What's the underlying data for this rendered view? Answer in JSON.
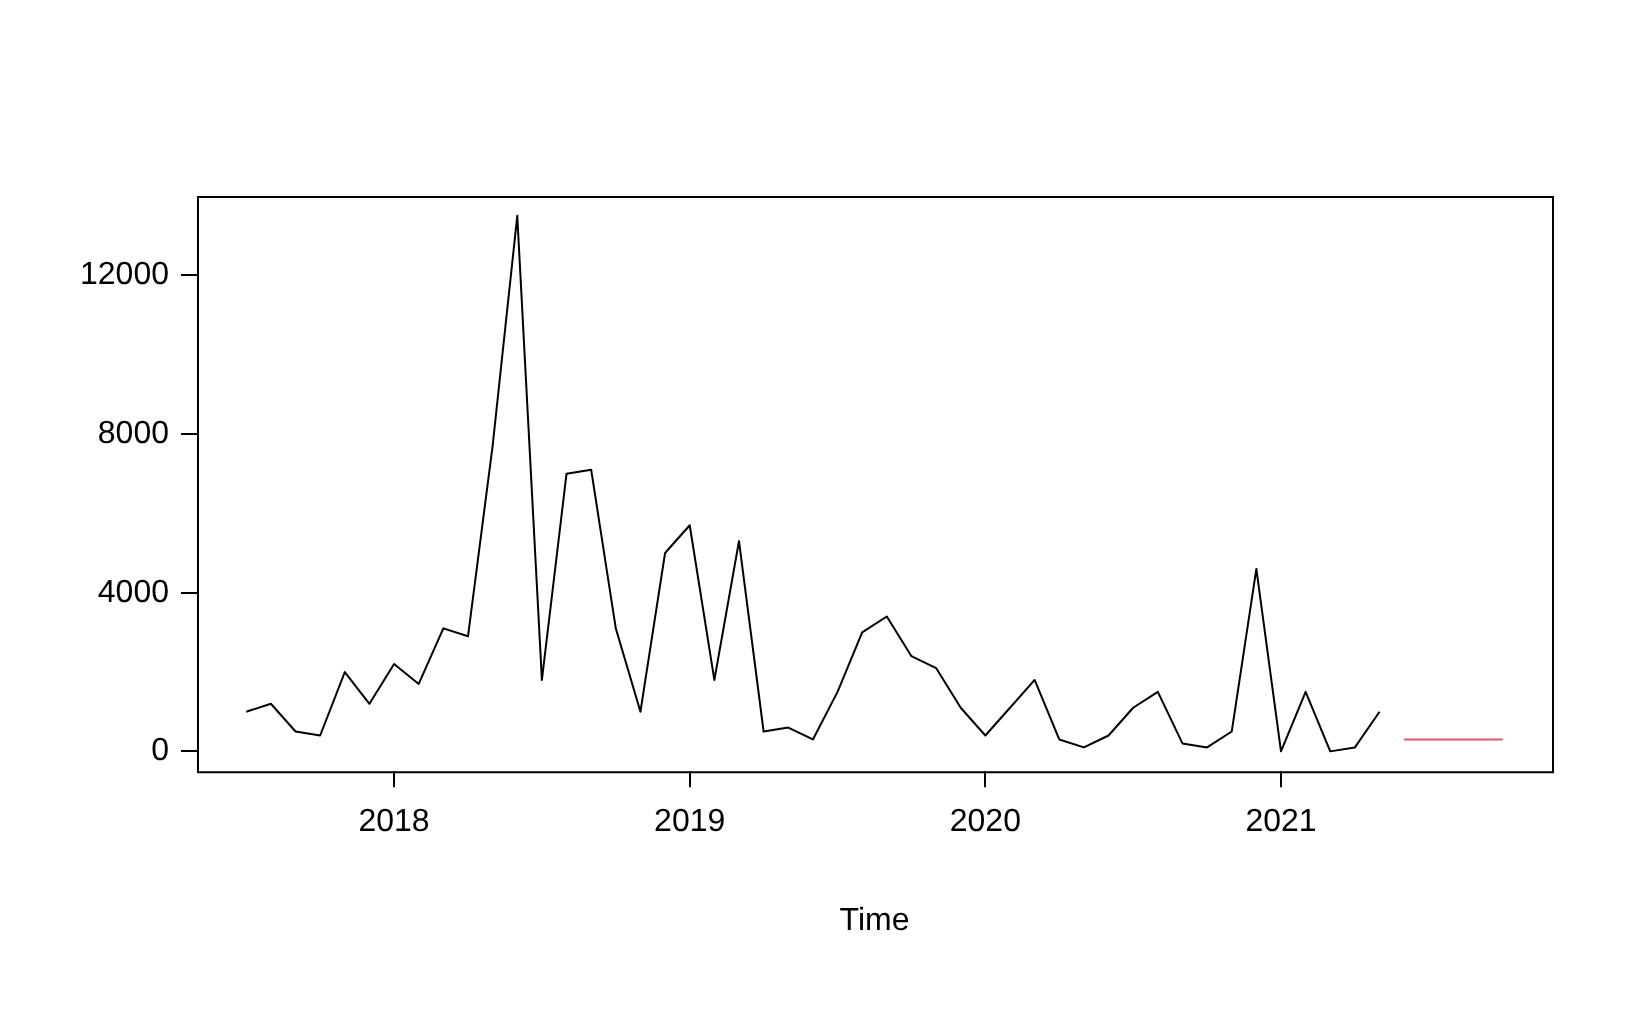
{
  "chart_data": {
    "type": "line",
    "xlabel": "Time",
    "x": [
      "2017-07",
      "2017-08",
      "2017-09",
      "2017-10",
      "2017-11",
      "2017-12",
      "2018-01",
      "2018-02",
      "2018-03",
      "2018-04",
      "2018-05",
      "2018-06",
      "2018-07",
      "2018-08",
      "2018-09",
      "2018-10",
      "2018-11",
      "2018-12",
      "2019-01",
      "2019-02",
      "2019-03",
      "2019-04",
      "2019-05",
      "2019-06",
      "2019-07",
      "2019-08",
      "2019-09",
      "2019-10",
      "2019-11",
      "2019-12",
      "2020-01",
      "2020-02",
      "2020-03",
      "2020-04",
      "2020-05",
      "2020-06",
      "2020-07",
      "2020-08",
      "2020-09",
      "2020-10",
      "2020-11",
      "2020-12",
      "2021-01",
      "2021-02",
      "2021-03",
      "2021-04",
      "2021-05"
    ],
    "series": [
      {
        "color": "#000000",
        "values": [
          1000,
          1200,
          500,
          400,
          2000,
          1200,
          2200,
          1700,
          3100,
          2900,
          7700,
          13500,
          1800,
          7000,
          7100,
          3100,
          1000,
          5000,
          5700,
          1800,
          5300,
          500,
          600,
          300,
          1500,
          3000,
          3400,
          2400,
          2100,
          1100,
          400,
          1100,
          1800,
          300,
          100,
          400,
          1100,
          1500,
          200,
          100,
          500,
          4600,
          0,
          1500,
          0,
          100,
          1000
        ]
      },
      {
        "color": "#df536b",
        "x": [
          "2021-06",
          "2021-07",
          "2021-08",
          "2021-09",
          "2021-10"
        ],
        "values": [
          300,
          300,
          300,
          300,
          300
        ]
      }
    ],
    "xlim": [
      "2017-05",
      "2021-12"
    ],
    "xticks": [
      {
        "value": "2018",
        "label": "2018"
      },
      {
        "value": "2019",
        "label": "2019"
      },
      {
        "value": "2020",
        "label": "2020"
      },
      {
        "value": "2021",
        "label": "2021"
      }
    ],
    "ylim": [
      -500,
      14000
    ],
    "yticks": [
      0,
      4000,
      8000,
      12000
    ],
    "grid": false,
    "legend": false,
    "marker": "none",
    "line_style": "solid"
  }
}
